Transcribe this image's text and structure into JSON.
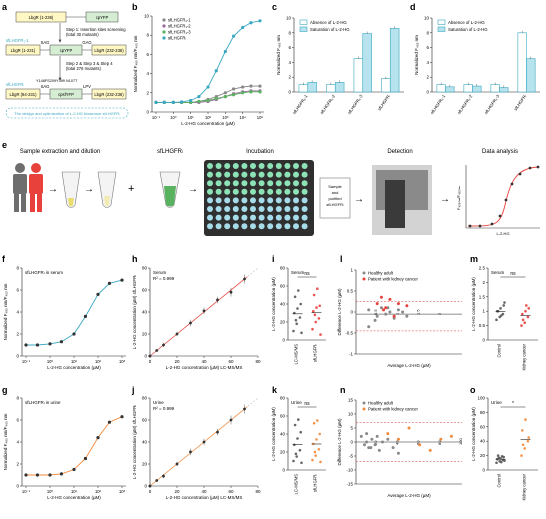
{
  "colors": {
    "teal": "#3aa8c1",
    "light_teal": "#b7e3ee",
    "orange": "#f08a3c",
    "red_point": "#e8413c",
    "grey_point": "#888888",
    "dash": "#d93a3a",
    "green": "#58b25f",
    "pink_person": "#e8413c",
    "grey_person": "#6e6e6e"
  },
  "panel_letters": [
    "a",
    "b",
    "c",
    "d",
    "e",
    "f",
    "g",
    "h",
    "i",
    "j",
    "k",
    "l",
    "m",
    "n",
    "o"
  ],
  "panel_a": {
    "box1a": "LbgR (1-236)",
    "box1b": "cpYFP",
    "step1": "Step 1: Insertion sites screening",
    "step1_sub": "(total 30 mutants)",
    "label2": "sfLHGFR₁-1",
    "box2a": "LbgR (1-231)",
    "link2a": "SAG",
    "box2b": "cpYFP",
    "link2b": "GAG",
    "box2c": "LbgR (232-236)",
    "step2": "Step 2 & Step 3 & Step 4",
    "step2_sub": "(total 276 mutants)",
    "mutations": "Y148FS209Y399 N107T",
    "label3": "sfLHGFRₗ",
    "box3a": "LbgR (84-231)",
    "link3a": "SAG",
    "box3b": "cpsfYFP",
    "link3b": "LPV",
    "box3c": "LbgR (232-236)",
    "caption": "The design and optimization of L-2-HG biosensor sfLHGFRₗ"
  },
  "panel_e": {
    "s1": "Sample extraction and dilution",
    "s2": "sfLHGFRₗ",
    "s3": "Incubation",
    "s4": "Detection",
    "s5": "Data analysis",
    "card": [
      "Sample",
      "and",
      "purified",
      "sfLHGFRₗ"
    ],
    "mini_y": "F₄₈₅ₙₘ/F₄₀₅ₙₘ",
    "mini_x": "L-2-HG"
  },
  "chart_data": [
    {
      "id": "b",
      "type": "line",
      "xscale": "log",
      "xlabel": "L-2-HG concentration (µM)",
      "ylabel": "Normalized F₄₈₅ nm/F₄₀₅ nm",
      "ylim": [
        0,
        10
      ],
      "yticks": [
        0,
        2,
        4,
        6,
        8,
        10
      ],
      "xticks": [
        "10⁻¹",
        "10⁰",
        "10¹",
        "10²",
        "10³",
        "10⁴",
        "10⁵"
      ],
      "x": [
        0.1,
        0.3,
        1,
        3,
        10,
        30,
        100,
        300,
        1000,
        3000,
        10000,
        30000,
        100000
      ],
      "series": [
        {
          "name": "sfLHGFR₁-1",
          "color": "#888888",
          "values": [
            1,
            1,
            1,
            1,
            1,
            1.1,
            1.3,
            1.6,
            2.0,
            2.4,
            2.6,
            2.7,
            2.7
          ]
        },
        {
          "name": "sfLHGFR₁-2",
          "color": "#9a6a9c",
          "values": [
            1,
            1,
            1,
            1,
            1,
            1,
            1.1,
            1.3,
            1.6,
            1.9,
            2.1,
            2.2,
            2.2
          ]
        },
        {
          "name": "sfLHGFR₁-3",
          "color": "#58b25f",
          "values": [
            1,
            1,
            1,
            1,
            1,
            1.1,
            1.2,
            1.4,
            1.6,
            1.8,
            2.0,
            2.1,
            2.1
          ]
        },
        {
          "name": "sfLHGFRₗ",
          "color": "#3aa8c1",
          "values": [
            1,
            1,
            1,
            1.05,
            1.2,
            1.6,
            2.6,
            4.3,
            6.3,
            7.9,
            8.8,
            9.3,
            9.5
          ]
        }
      ]
    },
    {
      "id": "c",
      "type": "bar",
      "ylabel": "Normalized F₄₈₅ nm",
      "ylim": [
        0,
        10
      ],
      "yticks": [
        0,
        2,
        4,
        6,
        8,
        10
      ],
      "categories": [
        "sfLHGFR₁-1",
        "sfLHGFR₁-2",
        "sfLHGFR₁-3",
        "sfLHGFRₗ"
      ],
      "series": [
        {
          "name": "Absence of L-2-HG",
          "values": [
            1.0,
            1.0,
            4.5,
            1.8
          ]
        },
        {
          "name": "Saturation of L-2-HG",
          "values": [
            1.3,
            1.3,
            7.9,
            8.6
          ]
        }
      ]
    },
    {
      "id": "d",
      "type": "bar",
      "ylabel": "Normalized F₄₀₅ nm",
      "ylim": [
        0,
        10
      ],
      "yticks": [
        0,
        2,
        4,
        6,
        8,
        10
      ],
      "categories": [
        "sfLHGFR₁-1",
        "sfLHGFR₁-2",
        "sfLHGFR₁-3",
        "sfLHGFRₗ"
      ],
      "series": [
        {
          "name": "Absence of L-2-HG",
          "values": [
            1.0,
            1.0,
            1.0,
            8.0
          ]
        },
        {
          "name": "Saturation of L-2-HG",
          "values": [
            0.7,
            0.8,
            0.6,
            4.5
          ]
        }
      ]
    },
    {
      "id": "f",
      "type": "line",
      "xscale": "log",
      "title": "sfLHGFRₗ in serum",
      "xlabel": "L-2-HG concentration (µM)",
      "ylabel": "Normalized F₄₈₅ nm/F₄₀₅ nm",
      "ylim": [
        0,
        8
      ],
      "yticks": [
        0,
        2,
        4,
        6,
        8
      ],
      "xticks": [
        "10⁻¹",
        "10⁰",
        "10¹",
        "10²",
        "10³"
      ],
      "x": [
        0.1,
        0.3,
        1,
        3,
        10,
        30,
        100,
        300,
        1000
      ],
      "series": [
        {
          "values": [
            1,
            1,
            1.1,
            1.3,
            2.0,
            3.6,
            5.6,
            6.6,
            6.9
          ]
        }
      ]
    },
    {
      "id": "g",
      "type": "line",
      "xscale": "log",
      "title": "sfLHGFRₗ in urine",
      "xlabel": "L-2-HG concentration (µM)",
      "ylabel": "Normalized F₄₈₅ nm/F₄₀₅ nm",
      "ylim": [
        0,
        8
      ],
      "yticks": [
        0,
        2,
        4,
        6,
        8
      ],
      "xticks": [
        "10⁻¹",
        "10⁰",
        "10¹",
        "10²",
        "10³"
      ],
      "x": [
        0.1,
        0.3,
        1,
        3,
        10,
        30,
        100,
        300,
        1000
      ],
      "series": [
        {
          "values": [
            1,
            1,
            1,
            1.1,
            1.5,
            2.5,
            4.4,
            5.8,
            6.3
          ]
        }
      ]
    },
    {
      "id": "h",
      "type": "scatter",
      "title": "Serum",
      "r2": "R² = 0.999",
      "xlabel": "L-2-HG concentration (µM) LC-MS/MS",
      "ylabel": "L-2-HG concentration (µM) sfLHGFRₗ",
      "xlim": [
        0,
        80
      ],
      "ylim": [
        0,
        80
      ],
      "xticks": [
        0,
        20,
        40,
        60,
        80
      ],
      "yticks": [
        0,
        20,
        40,
        60,
        80
      ],
      "x": [
        0,
        5,
        10,
        20,
        30,
        40,
        50,
        60,
        70
      ],
      "values": [
        0,
        5,
        10,
        20,
        30,
        41,
        51,
        58,
        70
      ],
      "errors": [
        1,
        1,
        2,
        2,
        3,
        3,
        3,
        4,
        4
      ]
    },
    {
      "id": "j",
      "type": "scatter",
      "title": "Urine",
      "r2": "R² = 0.999",
      "xlabel": "L-2-HG concentration (µM) LC-MS/MS",
      "ylabel": "L-2-HG concentration (µM) sfLHGFRₗ",
      "xlim": [
        0,
        80
      ],
      "ylim": [
        0,
        80
      ],
      "xticks": [
        0,
        20,
        40,
        60,
        80
      ],
      "yticks": [
        0,
        20,
        40,
        60,
        80
      ],
      "x": [
        0,
        5,
        10,
        20,
        30,
        40,
        50,
        60,
        70
      ],
      "values": [
        0,
        5,
        9,
        20,
        31,
        40,
        49,
        60,
        70
      ],
      "errors": [
        1,
        1,
        2,
        2,
        3,
        3,
        3,
        4,
        4
      ]
    },
    {
      "id": "i",
      "type": "scatter",
      "title": "Serum",
      "sig": "ns",
      "ylabel": "L-2-HG concentration (µM)",
      "ylim": [
        0,
        80
      ],
      "yticks": [
        0,
        20,
        40,
        60,
        80
      ],
      "categories": [
        "LC-MS/MS",
        "sfLHGFRₗ"
      ],
      "groups": [
        {
          "values": [
            10,
            18,
            25,
            30,
            35,
            40,
            48,
            55,
            8,
            22
          ]
        },
        {
          "values": [
            12,
            20,
            24,
            32,
            36,
            38,
            50,
            57,
            6,
            28
          ]
        }
      ]
    },
    {
      "id": "k",
      "type": "scatter",
      "title": "Urine",
      "sig": "ns",
      "ylabel": "L-2-HG concentration (µM)",
      "ylim": [
        0,
        80
      ],
      "yticks": [
        0,
        20,
        40,
        60,
        80
      ],
      "categories": [
        "LC-MS/MS",
        "sfLHGFRₗ"
      ],
      "groups": [
        {
          "values": [
            10,
            15,
            22,
            28,
            35,
            42,
            50,
            56,
            8,
            18
          ]
        },
        {
          "values": [
            11,
            16,
            23,
            29,
            34,
            40,
            52,
            55,
            9,
            20
          ]
        }
      ]
    },
    {
      "id": "l",
      "type": "scatter",
      "xlabel": "Average L-2-HG (µM)",
      "ylabel": "Difference L-2-HG (µM)",
      "xlim": [
        0,
        2.5
      ],
      "ylim": [
        -1,
        1
      ],
      "xticks": [
        0.5,
        1.0,
        1.5,
        2.0
      ],
      "yticks": [
        -1.0,
        -0.5,
        0.0,
        0.5,
        1.0
      ],
      "hlines": [
        0.25,
        -0.05,
        -0.45
      ],
      "series": [
        {
          "name": "Healthy adult",
          "points": [
            [
              0.3,
              0.05
            ],
            [
              0.5,
              -0.1
            ],
            [
              0.6,
              0.1
            ],
            [
              0.7,
              -0.05
            ],
            [
              0.8,
              0.0
            ],
            [
              0.9,
              -0.15
            ],
            [
              1.0,
              0.05
            ],
            [
              1.1,
              0.0
            ],
            [
              0.45,
              -0.2
            ],
            [
              0.75,
              0.1
            ],
            [
              1.2,
              -0.1
            ],
            [
              0.3,
              -0.35
            ]
          ]
        },
        {
          "name": "Patient with kidney cancer",
          "points": [
            [
              0.5,
              0.2
            ],
            [
              0.6,
              0.35
            ],
            [
              0.7,
              0.1
            ],
            [
              0.8,
              0.3
            ],
            [
              0.9,
              -0.1
            ],
            [
              1.0,
              0.2
            ],
            [
              1.2,
              0.15
            ],
            [
              0.65,
              0.05
            ]
          ]
        }
      ]
    },
    {
      "id": "n",
      "type": "scatter",
      "xlabel": "Average L-2-HG (µM)",
      "ylabel": "Difference L-2-HG (µM)",
      "xlim": [
        0,
        100
      ],
      "ylim": [
        -15,
        15
      ],
      "xticks": [
        20,
        40,
        60,
        80,
        100
      ],
      "yticks": [
        -15,
        -10,
        -5,
        0,
        5,
        10,
        15
      ],
      "hlines": [
        7,
        0,
        -7
      ],
      "series": [
        {
          "name": "Healthy adult",
          "points": [
            [
              5,
              2
            ],
            [
              8,
              -1
            ],
            [
              10,
              0
            ],
            [
              12,
              -2
            ],
            [
              15,
              1
            ],
            [
              18,
              -1
            ],
            [
              20,
              2
            ],
            [
              22,
              -3
            ],
            [
              25,
              0
            ],
            [
              30,
              1
            ],
            [
              35,
              -2
            ],
            [
              40,
              -4
            ],
            [
              10,
              3
            ],
            [
              14,
              -2
            ]
          ]
        },
        {
          "name": "Patient with kidney cancer",
          "points": [
            [
              30,
              3
            ],
            [
              40,
              1
            ],
            [
              50,
              5
            ],
            [
              60,
              -1
            ],
            [
              70,
              -3
            ],
            [
              90,
              2
            ],
            [
              80,
              1
            ]
          ]
        }
      ]
    },
    {
      "id": "m",
      "type": "scatter",
      "title": "Serum",
      "sig": "ns",
      "ylabel": "L-2-HG concentration (µM)",
      "ylim": [
        0,
        2.5
      ],
      "yticks": [
        0.0,
        0.5,
        1.0,
        1.5,
        2.0,
        2.5
      ],
      "categories": [
        "Control",
        "Kidney cancer"
      ],
      "groups": [
        {
          "values": [
            0.7,
            0.8,
            0.9,
            1.0,
            1.1,
            1.2,
            1.0,
            0.85,
            1.3
          ]
        },
        {
          "values": [
            0.5,
            0.6,
            0.8,
            0.9,
            1.0,
            1.1,
            0.7,
            1.2
          ]
        }
      ]
    },
    {
      "id": "o",
      "type": "scatter",
      "title": "Urine",
      "sig": "*",
      "ylabel": "L-2-HG concentration (µM)",
      "ylim": [
        0,
        100
      ],
      "yticks": [
        0,
        20,
        40,
        60,
        80,
        100
      ],
      "categories": [
        "Control",
        "Kidney cancer"
      ],
      "groups": [
        {
          "values": [
            10,
            12,
            14,
            15,
            16,
            18,
            20,
            11,
            13,
            17,
            19
          ]
        },
        {
          "values": [
            20,
            30,
            40,
            55,
            70,
            45,
            35
          ]
        }
      ]
    }
  ]
}
